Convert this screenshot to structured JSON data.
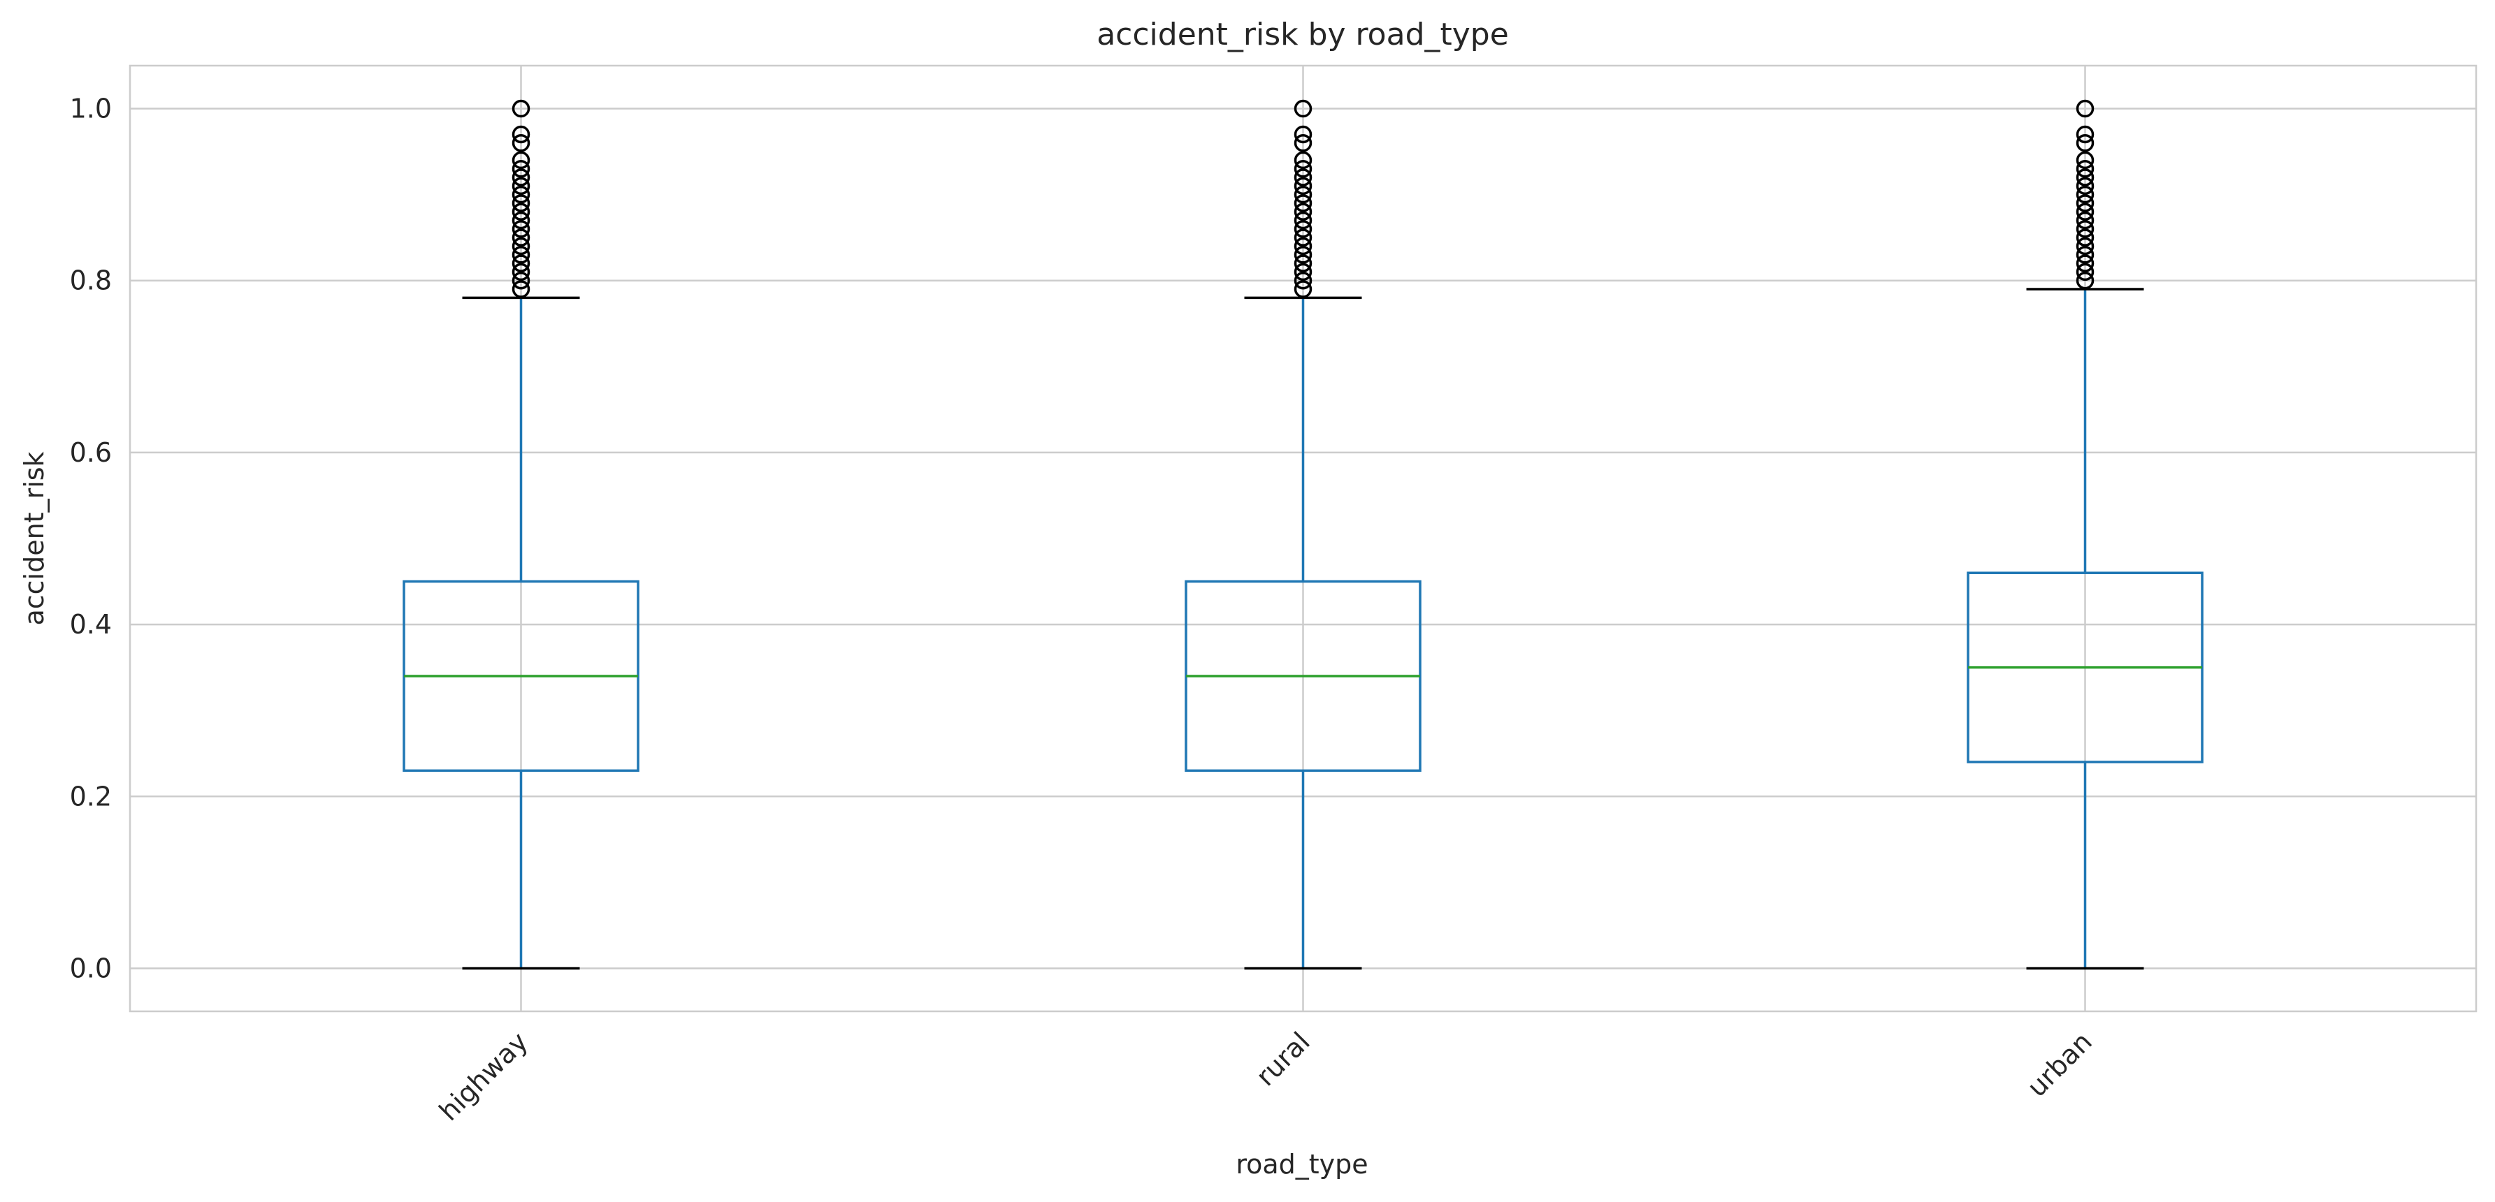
{
  "chart_data": {
    "type": "box",
    "title": "accident_risk by road_type",
    "xlabel": "road_type",
    "ylabel": "accident_risk",
    "categories": [
      "highway",
      "rural",
      "urban"
    ],
    "ylim": [
      -0.05,
      1.05
    ],
    "yticks": [
      0.0,
      0.2,
      0.4,
      0.6,
      0.8,
      1.0
    ],
    "ytick_labels": [
      "0.0",
      "0.2",
      "0.4",
      "0.6",
      "0.8",
      "1.0"
    ],
    "grid": true,
    "x_tick_rotation": 45,
    "boxes": [
      {
        "category": "highway",
        "whisker_low": 0.0,
        "q1": 0.23,
        "median": 0.34,
        "q3": 0.45,
        "whisker_high": 0.78,
        "outliers": [
          0.79,
          0.8,
          0.81,
          0.82,
          0.83,
          0.84,
          0.85,
          0.86,
          0.87,
          0.88,
          0.89,
          0.9,
          0.91,
          0.92,
          0.93,
          0.94,
          0.96,
          0.97,
          1.0
        ]
      },
      {
        "category": "rural",
        "whisker_low": 0.0,
        "q1": 0.23,
        "median": 0.34,
        "q3": 0.45,
        "whisker_high": 0.78,
        "outliers": [
          0.79,
          0.8,
          0.81,
          0.82,
          0.83,
          0.84,
          0.85,
          0.86,
          0.87,
          0.88,
          0.89,
          0.9,
          0.91,
          0.92,
          0.93,
          0.94,
          0.96,
          0.97,
          1.0
        ]
      },
      {
        "category": "urban",
        "whisker_low": 0.0,
        "q1": 0.24,
        "median": 0.35,
        "q3": 0.46,
        "whisker_high": 0.79,
        "outliers": [
          0.8,
          0.81,
          0.82,
          0.83,
          0.84,
          0.85,
          0.86,
          0.87,
          0.88,
          0.89,
          0.9,
          0.91,
          0.92,
          0.93,
          0.94,
          0.96,
          0.97,
          1.0
        ]
      }
    ],
    "colors": {
      "box": "#1f77b4",
      "median": "#2ca02c",
      "caps": "#000000",
      "outlier": "#000000",
      "grid": "#cccccc",
      "frame": "#cccccc"
    }
  }
}
